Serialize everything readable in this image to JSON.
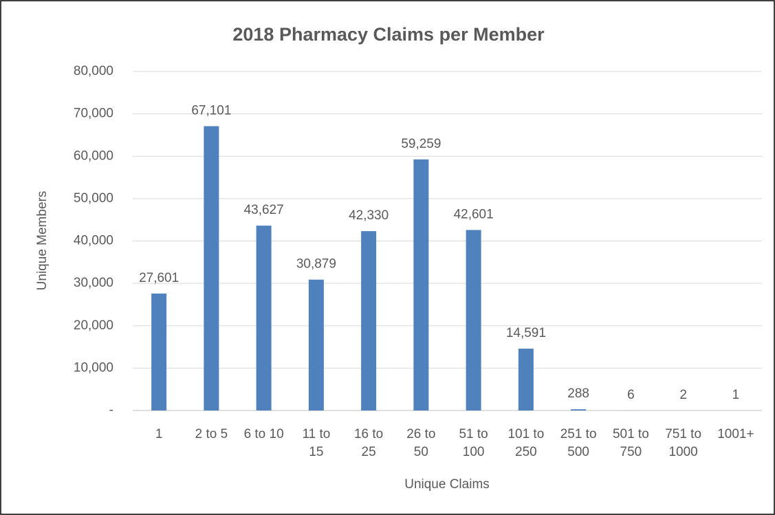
{
  "chart_data": {
    "type": "bar",
    "title": "2018 Pharmacy Claims per Member",
    "x_label": "Unique Claims",
    "y_label": "Unique Members",
    "categories": [
      "1",
      "2 to 5",
      "6 to 10",
      "11 to 15",
      "16 to 25",
      "26 to 50",
      "51 to 100",
      "101 to 250",
      "251 to 500",
      "501 to 750",
      "751 to 1000",
      "1001+"
    ],
    "values": [
      27601,
      67101,
      43627,
      30879,
      42330,
      59259,
      42601,
      14591,
      288,
      6,
      2,
      1
    ],
    "value_labels": [
      "27,601",
      "67,101",
      "43,627",
      "30,879",
      "42,330",
      "59,259",
      "42,601",
      "14,591",
      "288",
      "6",
      "2",
      "1"
    ],
    "color": "#4f81bd",
    "ylim": [
      0,
      80000
    ],
    "yticks": [
      {
        "value": 0,
        "label": "-"
      },
      {
        "value": 10000,
        "label": "10,000"
      },
      {
        "value": 20000,
        "label": "20,000"
      },
      {
        "value": 30000,
        "label": "30,000"
      },
      {
        "value": 40000,
        "label": "40,000"
      },
      {
        "value": 50000,
        "label": "50,000"
      },
      {
        "value": 60000,
        "label": "60,000"
      },
      {
        "value": 70000,
        "label": "70,000"
      },
      {
        "value": 80000,
        "label": "80,000"
      }
    ],
    "grid": true
  }
}
